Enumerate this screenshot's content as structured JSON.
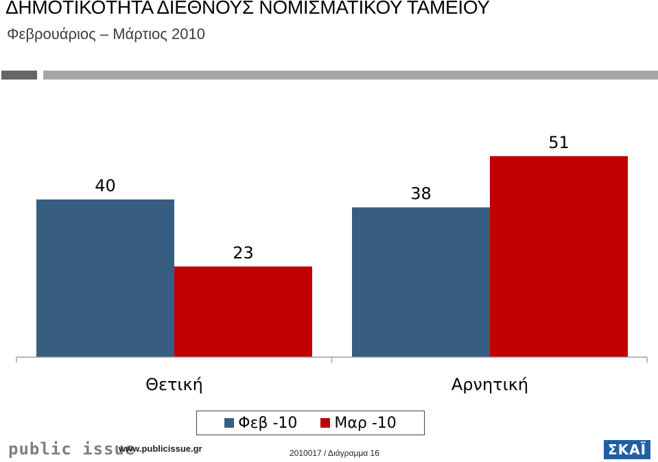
{
  "header": {
    "title": "ΔΗΜΟΤΙΚΟΤΗΤΑ ΔΙΕΘΝΟΥΣ ΝΟΜΙΣΜΑΤΙΚΟΥ ΤΑΜΕΙΟΥ",
    "subtitle": "Φεβρουάριος – Μάρτιος 2010"
  },
  "chart_data": {
    "type": "bar",
    "categories": [
      "Θετική",
      "Αρνητική"
    ],
    "series": [
      {
        "name": "Φεβ -10",
        "values": [
          40,
          38
        ],
        "color": "#375d80"
      },
      {
        "name": "Μαρ -10",
        "values": [
          23,
          51
        ],
        "color": "#c00000"
      }
    ],
    "title": "",
    "xlabel": "",
    "ylabel": "",
    "ylim": [
      0,
      55
    ],
    "grid": false,
    "legend_position": "bottom"
  },
  "legend": {
    "items": [
      {
        "label": "Φεβ -10",
        "color": "#375d80"
      },
      {
        "label": "Μαρ -10",
        "color": "#c00000"
      }
    ]
  },
  "footer": {
    "logo_text": "public issue",
    "url": "www.publicissue.gr",
    "reference": "2010017 / Διάγραμμα 16",
    "broadcaster": "ΣΚΑΪ"
  }
}
